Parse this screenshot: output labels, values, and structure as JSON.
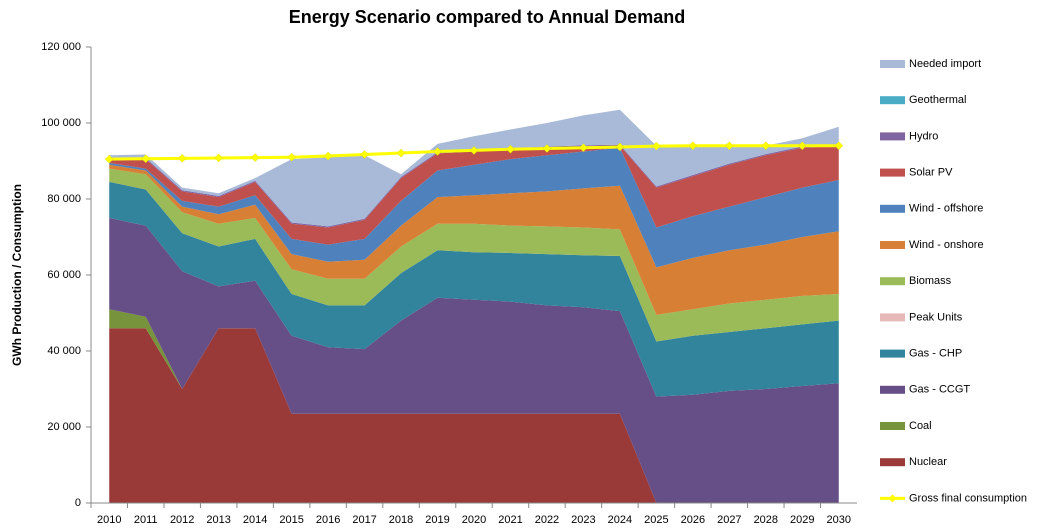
{
  "chart_data": {
    "type": "stacked_area",
    "title": "Energy Scenario compared to Annual Demand",
    "y_label": "GWh Production / Consumption",
    "categories": [
      "2010",
      "2011",
      "2012",
      "2013",
      "2014",
      "2015",
      "2016",
      "2017",
      "2018",
      "2019",
      "2020",
      "2021",
      "2022",
      "2023",
      "2024",
      "2025",
      "2026",
      "2027",
      "2028",
      "2029",
      "2030"
    ],
    "ylim": [
      0,
      120000
    ],
    "yticks": [
      0,
      {
        "value": 20000,
        "label": "20 000"
      },
      {
        "value": 40000,
        "label": "40 000"
      },
      {
        "value": 60000,
        "label": "60 000"
      },
      {
        "value": 80000,
        "label": "80 000"
      },
      {
        "value": 100000,
        "label": "100 000"
      },
      {
        "value": 120000,
        "label": "120 000"
      }
    ],
    "grid": false,
    "legend": "right",
    "series": [
      {
        "name": "Nuclear",
        "color": "#993a39",
        "values": [
          46000,
          46000,
          30000,
          46000,
          46000,
          23500,
          23500,
          23500,
          23500,
          23500,
          23500,
          23500,
          23500,
          23500,
          23500,
          0,
          0,
          0,
          0,
          0,
          0
        ]
      },
      {
        "name": "Coal",
        "color": "#77933c",
        "values": [
          5000,
          3000,
          0,
          0,
          0,
          0,
          0,
          0,
          0,
          0,
          0,
          0,
          0,
          0,
          0,
          0,
          0,
          0,
          0,
          0,
          0
        ]
      },
      {
        "name": "Gas - CCGT",
        "color": "#664f87",
        "values": [
          24000,
          24000,
          31000,
          11000,
          12500,
          20500,
          17500,
          17000,
          24500,
          30500,
          30000,
          29500,
          28500,
          28000,
          27000,
          28000,
          28500,
          29500,
          30000,
          30800,
          31500
        ]
      },
      {
        "name": "Gas - CHP",
        "color": "#31849b",
        "values": [
          9500,
          9500,
          10000,
          10500,
          11000,
          11000,
          11000,
          11500,
          12500,
          12500,
          12500,
          12800,
          13500,
          13700,
          14500,
          14500,
          15500,
          15500,
          16000,
          16200,
          16500
        ]
      },
      {
        "name": "Peak Units",
        "color": "#e6b9b8",
        "values": [
          0,
          0,
          0,
          0,
          0,
          0,
          0,
          0,
          0,
          0,
          0,
          0,
          0,
          0,
          0,
          0,
          0,
          0,
          0,
          0,
          0
        ]
      },
      {
        "name": "Biomass",
        "color": "#9bbb59",
        "values": [
          3500,
          4000,
          5500,
          6000,
          5500,
          6500,
          7000,
          7000,
          7000,
          7000,
          7500,
          7200,
          7300,
          7300,
          7000,
          7000,
          7000,
          7500,
          7500,
          7500,
          7000
        ]
      },
      {
        "name": "Wind - onshore",
        "color": "#d77f35",
        "values": [
          1000,
          1000,
          1500,
          2500,
          3500,
          4000,
          4500,
          5000,
          5500,
          7000,
          7500,
          8500,
          9200,
          10300,
          11500,
          12500,
          13500,
          14000,
          14500,
          15500,
          16500
        ]
      },
      {
        "name": "Wind - offshore",
        "color": "#4f81bd",
        "values": [
          500,
          500,
          1500,
          2000,
          2500,
          4000,
          4500,
          5500,
          6500,
          7000,
          8000,
          9000,
          9500,
          9700,
          10000,
          10500,
          11000,
          11500,
          12500,
          13000,
          13500
        ]
      },
      {
        "name": "Solar PV",
        "color": "#c0504d",
        "values": [
          1000,
          2500,
          2500,
          2500,
          3500,
          4000,
          4500,
          5000,
          6000,
          4500,
          3500,
          2500,
          2000,
          1300,
          500,
          10500,
          10500,
          11000,
          11000,
          10500,
          9000
        ]
      },
      {
        "name": "Hydro",
        "color": "#8064a2",
        "values": [
          300,
          300,
          300,
          300,
          300,
          300,
          300,
          300,
          300,
          300,
          300,
          300,
          300,
          300,
          300,
          300,
          300,
          300,
          300,
          300,
          300
        ]
      },
      {
        "name": "Geothermal",
        "color": "#4bacc6",
        "values": [
          0,
          0,
          0,
          0,
          0,
          0,
          0,
          0,
          0,
          0,
          0,
          0,
          0,
          0,
          0,
          0,
          0,
          0,
          0,
          0,
          0
        ]
      },
      {
        "name": "Needed import",
        "color": "#a9bad9",
        "values": [
          700,
          900,
          700,
          700,
          700,
          16700,
          18200,
          16700,
          700,
          2200,
          3700,
          5000,
          6200,
          7900,
          9200,
          10700,
          7700,
          4700,
          2200,
          2200,
          4700
        ]
      }
    ],
    "line": {
      "name": "Gross final consumption",
      "color": "#ffff00",
      "values": [
        90500,
        90600,
        90700,
        90800,
        90900,
        91000,
        91300,
        91700,
        92100,
        92500,
        92800,
        93100,
        93300,
        93500,
        93700,
        93900,
        94000,
        94000,
        94000,
        94000,
        94000
      ]
    }
  }
}
